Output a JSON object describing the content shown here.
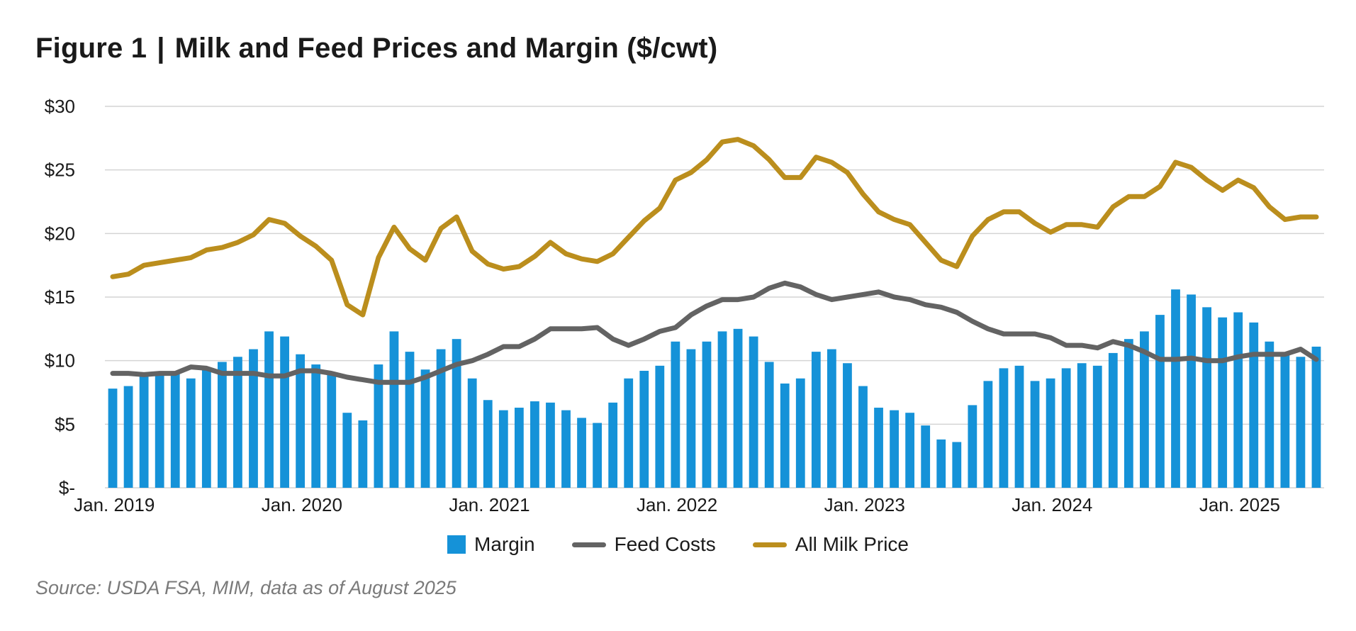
{
  "figure_label": "Figure 1",
  "title": "Milk and Feed Prices and Margin ($/cwt)",
  "source": "Source: USDA FSA, MIM, data as of August 2025",
  "colors": {
    "margin": "#1592d8",
    "feed": "#636363",
    "milk": "#bb8e1d",
    "grid": "#d4d4d4"
  },
  "legend": [
    {
      "label": "Margin",
      "kind": "bar",
      "color": "#1592d8"
    },
    {
      "label": "Feed Costs",
      "kind": "line",
      "color": "#636363"
    },
    {
      "label": "All Milk Price",
      "kind": "line",
      "color": "#bb8e1d"
    }
  ],
  "chart_data": {
    "type": "bar",
    "title": "Milk and Feed Prices and Margin ($/cwt)",
    "ylim": [
      0,
      30
    ],
    "yticks": [
      0,
      5,
      10,
      15,
      20,
      25,
      30
    ],
    "ytick_labels": [
      "$-",
      "$5",
      "$10",
      "$15",
      "$20",
      "$25",
      "$30"
    ],
    "xtick_labels": [
      {
        "label": "Jan. 2019",
        "index": 0
      },
      {
        "label": "Jan. 2020",
        "index": 12
      },
      {
        "label": "Jan. 2021",
        "index": 24
      },
      {
        "label": "Jan. 2022",
        "index": 36
      },
      {
        "label": "Jan. 2023",
        "index": 48
      },
      {
        "label": "Jan. 2024",
        "index": 60
      },
      {
        "label": "Jan. 2025",
        "index": 72
      }
    ],
    "grid": true,
    "legend_position": "bottom-center",
    "x_start": "Jan. 2019",
    "series": [
      {
        "name": "Margin",
        "type": "bar",
        "values": [
          7.8,
          8.0,
          8.8,
          8.9,
          9.0,
          8.6,
          9.3,
          9.9,
          10.3,
          10.9,
          12.3,
          11.9,
          10.5,
          9.7,
          8.9,
          5.9,
          5.3,
          9.7,
          12.3,
          10.7,
          9.3,
          10.9,
          11.7,
          8.6,
          6.9,
          6.1,
          6.3,
          6.8,
          6.7,
          6.1,
          5.5,
          5.1,
          6.7,
          8.6,
          9.2,
          9.6,
          11.5,
          10.9,
          11.5,
          12.3,
          12.5,
          11.9,
          9.9,
          8.2,
          8.6,
          10.7,
          10.9,
          9.8,
          8.0,
          6.3,
          6.1,
          5.9,
          4.9,
          3.8,
          3.6,
          6.5,
          8.4,
          9.4,
          9.6,
          8.4,
          8.6,
          9.4,
          9.8,
          9.6,
          10.6,
          11.7,
          12.3,
          13.6,
          15.6,
          15.2,
          14.2,
          13.4,
          13.8,
          13.0,
          11.5,
          10.6,
          10.3,
          11.1
        ]
      },
      {
        "name": "Feed Costs",
        "type": "line",
        "values": [
          9.0,
          9.0,
          8.9,
          9.0,
          9.0,
          9.5,
          9.4,
          9.0,
          9.0,
          9.0,
          8.8,
          8.8,
          9.2,
          9.2,
          9.0,
          8.7,
          8.5,
          8.3,
          8.3,
          8.3,
          8.7,
          9.2,
          9.7,
          10.0,
          10.5,
          11.1,
          11.1,
          11.7,
          12.5,
          12.5,
          12.5,
          12.6,
          11.7,
          11.2,
          11.7,
          12.3,
          12.6,
          13.6,
          14.3,
          14.8,
          14.8,
          15.0,
          15.7,
          16.1,
          15.8,
          15.2,
          14.8,
          15.0,
          15.2,
          15.4,
          15.0,
          14.8,
          14.4,
          14.2,
          13.8,
          13.1,
          12.5,
          12.1,
          12.1,
          12.1,
          11.8,
          11.2,
          11.2,
          11.0,
          11.5,
          11.2,
          10.7,
          10.1,
          10.1,
          10.2,
          10.0,
          10.0,
          10.3,
          10.5,
          10.5,
          10.5,
          10.9,
          10.1
        ]
      },
      {
        "name": "All Milk Price",
        "type": "line",
        "values": [
          16.6,
          16.8,
          17.5,
          17.7,
          17.9,
          18.1,
          18.7,
          18.9,
          19.3,
          19.9,
          21.1,
          20.8,
          19.8,
          19.0,
          17.9,
          14.4,
          13.6,
          18.1,
          20.5,
          18.8,
          17.9,
          20.4,
          21.3,
          18.6,
          17.6,
          17.2,
          17.4,
          18.2,
          19.3,
          18.4,
          18.0,
          17.8,
          18.4,
          19.7,
          21.0,
          22.0,
          24.2,
          24.8,
          25.8,
          27.2,
          27.4,
          26.9,
          25.8,
          24.4,
          24.4,
          26.0,
          25.6,
          24.8,
          23.1,
          21.7,
          21.1,
          20.7,
          19.3,
          17.9,
          17.4,
          19.8,
          21.1,
          21.7,
          21.7,
          20.8,
          20.1,
          20.7,
          20.7,
          20.5,
          22.1,
          22.9,
          22.9,
          23.7,
          25.6,
          25.2,
          24.2,
          23.4,
          24.2,
          23.6,
          22.1,
          21.1,
          21.3,
          21.3
        ]
      }
    ]
  }
}
